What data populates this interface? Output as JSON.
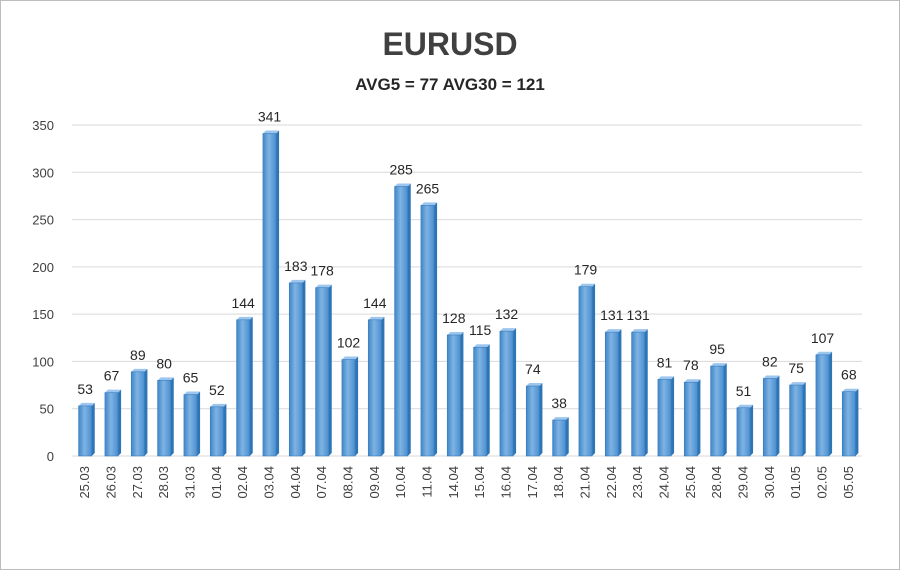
{
  "chart_data": {
    "type": "bar",
    "title": "EURUSD",
    "subtitle": "AVG5 = 77 AVG30 = 121",
    "categories": [
      "25.03",
      "26.03",
      "27.03",
      "28.03",
      "31.03",
      "01.04",
      "02.04",
      "03.04",
      "04.04",
      "07.04",
      "08.04",
      "09.04",
      "10.04",
      "11.04",
      "14.04",
      "15.04",
      "16.04",
      "17.04",
      "18.04",
      "21.04",
      "22.04",
      "23.04",
      "24.04",
      "25.04",
      "28.04",
      "29.04",
      "30.04",
      "01.05",
      "02.05",
      "05.05"
    ],
    "values": [
      53,
      67,
      89,
      80,
      65,
      52,
      144,
      341,
      183,
      178,
      102,
      144,
      285,
      265,
      128,
      115,
      132,
      74,
      38,
      179,
      131,
      131,
      81,
      78,
      95,
      51,
      82,
      75,
      107,
      68
    ],
    "y_ticks": [
      "0",
      "50",
      "100",
      "150",
      "200",
      "250",
      "300",
      "350"
    ],
    "ylim": [
      0,
      350
    ],
    "grid": true,
    "colors": {
      "bar": "#5b9bd5",
      "bar_dark": "#2e75b6",
      "grid": "#d9d9d9"
    }
  }
}
